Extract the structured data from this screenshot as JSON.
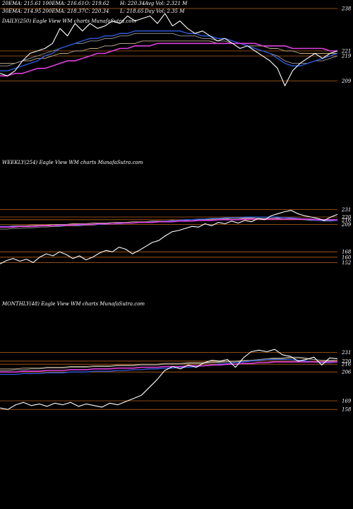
{
  "header": {
    "row1": [
      {
        "label": "20EMA: 215.61",
        "color": "#ffffff"
      },
      {
        "label": "100EMA: 216.61",
        "color": "#ffffff"
      },
      {
        "label": "O: 219.62",
        "color": "#ffffff"
      },
      {
        "label": "H: 220.34",
        "color": "#ffffff"
      },
      {
        "label": "Avg Vol: 2.321 M",
        "color": "#ffffff"
      }
    ],
    "row2": [
      {
        "label": "30EMA: 214.95",
        "color": "#ffffff"
      },
      {
        "label": "200EMA: 218.37",
        "color": "#ffffff"
      },
      {
        "label": "C: 220.34",
        "color": "#ffffff"
      },
      {
        "label": "L: 218.65",
        "color": "#ffffff"
      },
      {
        "label": "Day Vol: 2.35 M",
        "color": "#ffffff"
      }
    ]
  },
  "colors": {
    "background": "#000000",
    "price": "#ffffff",
    "level_line": "#b8621c",
    "ema_fast": "#9a9a9a",
    "ema_mid": "#c8b48c",
    "ema_blue": "#2f5fe0",
    "ema_magenta": "#e040e0",
    "ema_orange": "#a0522d"
  },
  "chart_data": [
    {
      "type": "line",
      "panel": "daily",
      "title": "DAILY(250) Eagle  View  WM charts MunafaSutra.com",
      "ylim": [
        204,
        238
      ],
      "levels": [
        238,
        221,
        219,
        209
      ],
      "price": [
        212,
        211,
        213,
        217,
        220,
        221,
        222,
        224,
        230,
        227,
        232,
        229,
        232,
        230,
        231,
        233,
        232,
        235,
        233,
        234,
        235,
        232,
        236,
        231,
        233,
        230,
        228,
        229,
        227,
        225,
        226,
        224,
        222,
        223,
        221,
        219,
        217,
        214,
        207,
        213,
        216,
        218,
        220,
        218,
        220,
        221
      ],
      "ema_fast": [
        215,
        215,
        216,
        217,
        218,
        219,
        220,
        221,
        222,
        223,
        224,
        224,
        225,
        225,
        226,
        226,
        227,
        227,
        228,
        228,
        228,
        228,
        228,
        228,
        227,
        227,
        227,
        226,
        226,
        225,
        225,
        224,
        224,
        223,
        222,
        221,
        220,
        219,
        217,
        216,
        216,
        216,
        217,
        217,
        218,
        219
      ],
      "ema_slow": [
        216,
        216,
        216,
        217,
        217,
        218,
        218,
        219,
        220,
        220,
        221,
        221,
        222,
        222,
        223,
        223,
        224,
        224,
        224,
        225,
        225,
        225,
        225,
        225,
        225,
        225,
        225,
        225,
        225,
        224,
        224,
        224,
        224,
        223,
        223,
        223,
        222,
        222,
        221,
        221,
        220,
        220,
        220,
        220,
        220,
        220
      ],
      "ema_blue": [
        213,
        213,
        214,
        215,
        216,
        217,
        219,
        220,
        222,
        223,
        224,
        225,
        226,
        226,
        227,
        227,
        228,
        228,
        229,
        229,
        229,
        229,
        229,
        229,
        229,
        228,
        228,
        227,
        227,
        226,
        226,
        225,
        224,
        223,
        222,
        221,
        220,
        218,
        216,
        215,
        215,
        216,
        217,
        218,
        219,
        220
      ],
      "ema_magenta": [
        211,
        211,
        212,
        212,
        213,
        214,
        214,
        215,
        216,
        217,
        217,
        218,
        219,
        220,
        220,
        221,
        222,
        222,
        223,
        223,
        223,
        224,
        224,
        224,
        224,
        224,
        224,
        224,
        224,
        224,
        224,
        224,
        224,
        224,
        224,
        223,
        223,
        223,
        223,
        222,
        222,
        222,
        222,
        222,
        221,
        221
      ]
    },
    {
      "type": "line",
      "panel": "weekly",
      "title": "WEEKLY(254) Eagle  View  WM charts MunafaSutra.com",
      "ylim": [
        145,
        238
      ],
      "levels": [
        231,
        220,
        216,
        209,
        168,
        160,
        152
      ],
      "price": [
        150,
        155,
        158,
        154,
        157,
        152,
        160,
        165,
        162,
        168,
        164,
        158,
        162,
        156,
        160,
        166,
        170,
        168,
        175,
        172,
        165,
        170,
        176,
        182,
        185,
        192,
        198,
        200,
        203,
        206,
        205,
        210,
        207,
        212,
        210,
        214,
        211,
        215,
        213,
        218,
        216,
        222,
        225,
        228,
        230,
        225,
        222,
        220,
        218,
        215,
        220,
        224
      ],
      "ema_fast": [
        202,
        202,
        203,
        203,
        204,
        204,
        205,
        205,
        206,
        206,
        207,
        207,
        207,
        208,
        208,
        209,
        209,
        210,
        210,
        211,
        211,
        212,
        212,
        213,
        213,
        214,
        214,
        215,
        215,
        216,
        216,
        217,
        217,
        218,
        218,
        218,
        219,
        219,
        219,
        220,
        220,
        220,
        219,
        219,
        218,
        217,
        216,
        215,
        215,
        214,
        214,
        215
      ],
      "ema_slow": [
        206,
        206,
        207,
        207,
        207,
        208,
        208,
        208,
        209,
        209,
        209,
        210,
        210,
        210,
        211,
        211,
        211,
        212,
        212,
        212,
        213,
        213,
        213,
        214,
        214,
        214,
        215,
        215,
        215,
        216,
        216,
        216,
        217,
        217,
        217,
        218,
        218,
        218,
        218,
        218,
        218,
        218,
        218,
        217,
        217,
        217,
        216,
        216,
        216,
        216,
        216,
        216
      ],
      "ema_blue": [
        206,
        206,
        206,
        206,
        206,
        206,
        207,
        207,
        207,
        207,
        208,
        208,
        208,
        209,
        209,
        209,
        210,
        210,
        210,
        211,
        211,
        212,
        212,
        213,
        213,
        214,
        214,
        215,
        216,
        216,
        217,
        217,
        218,
        218,
        219,
        219,
        219,
        220,
        220,
        220,
        220,
        220,
        220,
        219,
        219,
        218,
        217,
        216,
        215,
        215,
        215,
        215
      ],
      "ema_magenta": [
        205,
        205,
        205,
        206,
        206,
        206,
        207,
        207,
        207,
        208,
        208,
        208,
        209,
        209,
        209,
        210,
        210,
        210,
        211,
        211,
        211,
        212,
        212,
        212,
        213,
        213,
        213,
        214,
        214,
        214,
        215,
        215,
        215,
        216,
        216,
        216,
        216,
        217,
        217,
        217,
        217,
        217,
        217,
        217,
        217,
        217,
        217,
        217,
        216,
        216,
        216,
        216
      ]
    },
    {
      "type": "line",
      "panel": "monthly",
      "title": "MONTHLY(48) Eagle  View  WM charts MunafaSutra.com",
      "ylim": [
        150,
        237
      ],
      "levels": [
        231,
        220,
        216,
        206,
        169,
        158
      ],
      "price": [
        160,
        158,
        164,
        167,
        163,
        165,
        162,
        166,
        164,
        167,
        162,
        165,
        163,
        161,
        166,
        164,
        168,
        172,
        176,
        186,
        196,
        208,
        213,
        210,
        215,
        212,
        218,
        221,
        220,
        222,
        212,
        224,
        232,
        234,
        232,
        235,
        228,
        226,
        220,
        222,
        225,
        215,
        224,
        223
      ],
      "ema_fast": [
        208,
        208,
        209,
        209,
        210,
        210,
        211,
        211,
        211,
        212,
        212,
        212,
        213,
        213,
        213,
        214,
        214,
        214,
        215,
        215,
        215,
        216,
        216,
        216,
        217,
        217,
        217,
        218,
        218,
        219,
        219,
        220,
        221,
        222,
        223,
        224,
        224,
        225,
        225,
        224,
        222,
        221,
        220,
        221
      ],
      "ema_slow": [
        210,
        210,
        210,
        211,
        211,
        211,
        212,
        212,
        212,
        213,
        213,
        213,
        214,
        214,
        214,
        215,
        215,
        215,
        216,
        216,
        216,
        217,
        217,
        217,
        218,
        218,
        218,
        219,
        219,
        220,
        220,
        221,
        221,
        222,
        223,
        223,
        223,
        224,
        224,
        223,
        222,
        221,
        221,
        221
      ],
      "ema_blue": [
        203,
        203,
        203,
        204,
        204,
        204,
        205,
        205,
        205,
        206,
        206,
        206,
        207,
        207,
        207,
        208,
        208,
        209,
        209,
        210,
        210,
        211,
        211,
        212,
        212,
        213,
        214,
        215,
        216,
        217,
        218,
        219,
        220,
        221,
        222,
        222,
        222,
        222,
        221,
        220,
        219,
        218,
        218,
        219
      ],
      "ema_magenta": [
        206,
        206,
        206,
        207,
        207,
        207,
        208,
        208,
        208,
        209,
        209,
        209,
        210,
        210,
        210,
        211,
        211,
        211,
        212,
        212,
        212,
        213,
        213,
        213,
        214,
        214,
        214,
        215,
        215,
        216,
        216,
        217,
        217,
        218,
        218,
        219,
        219,
        219,
        219,
        219,
        219,
        219,
        219,
        219
      ]
    }
  ]
}
